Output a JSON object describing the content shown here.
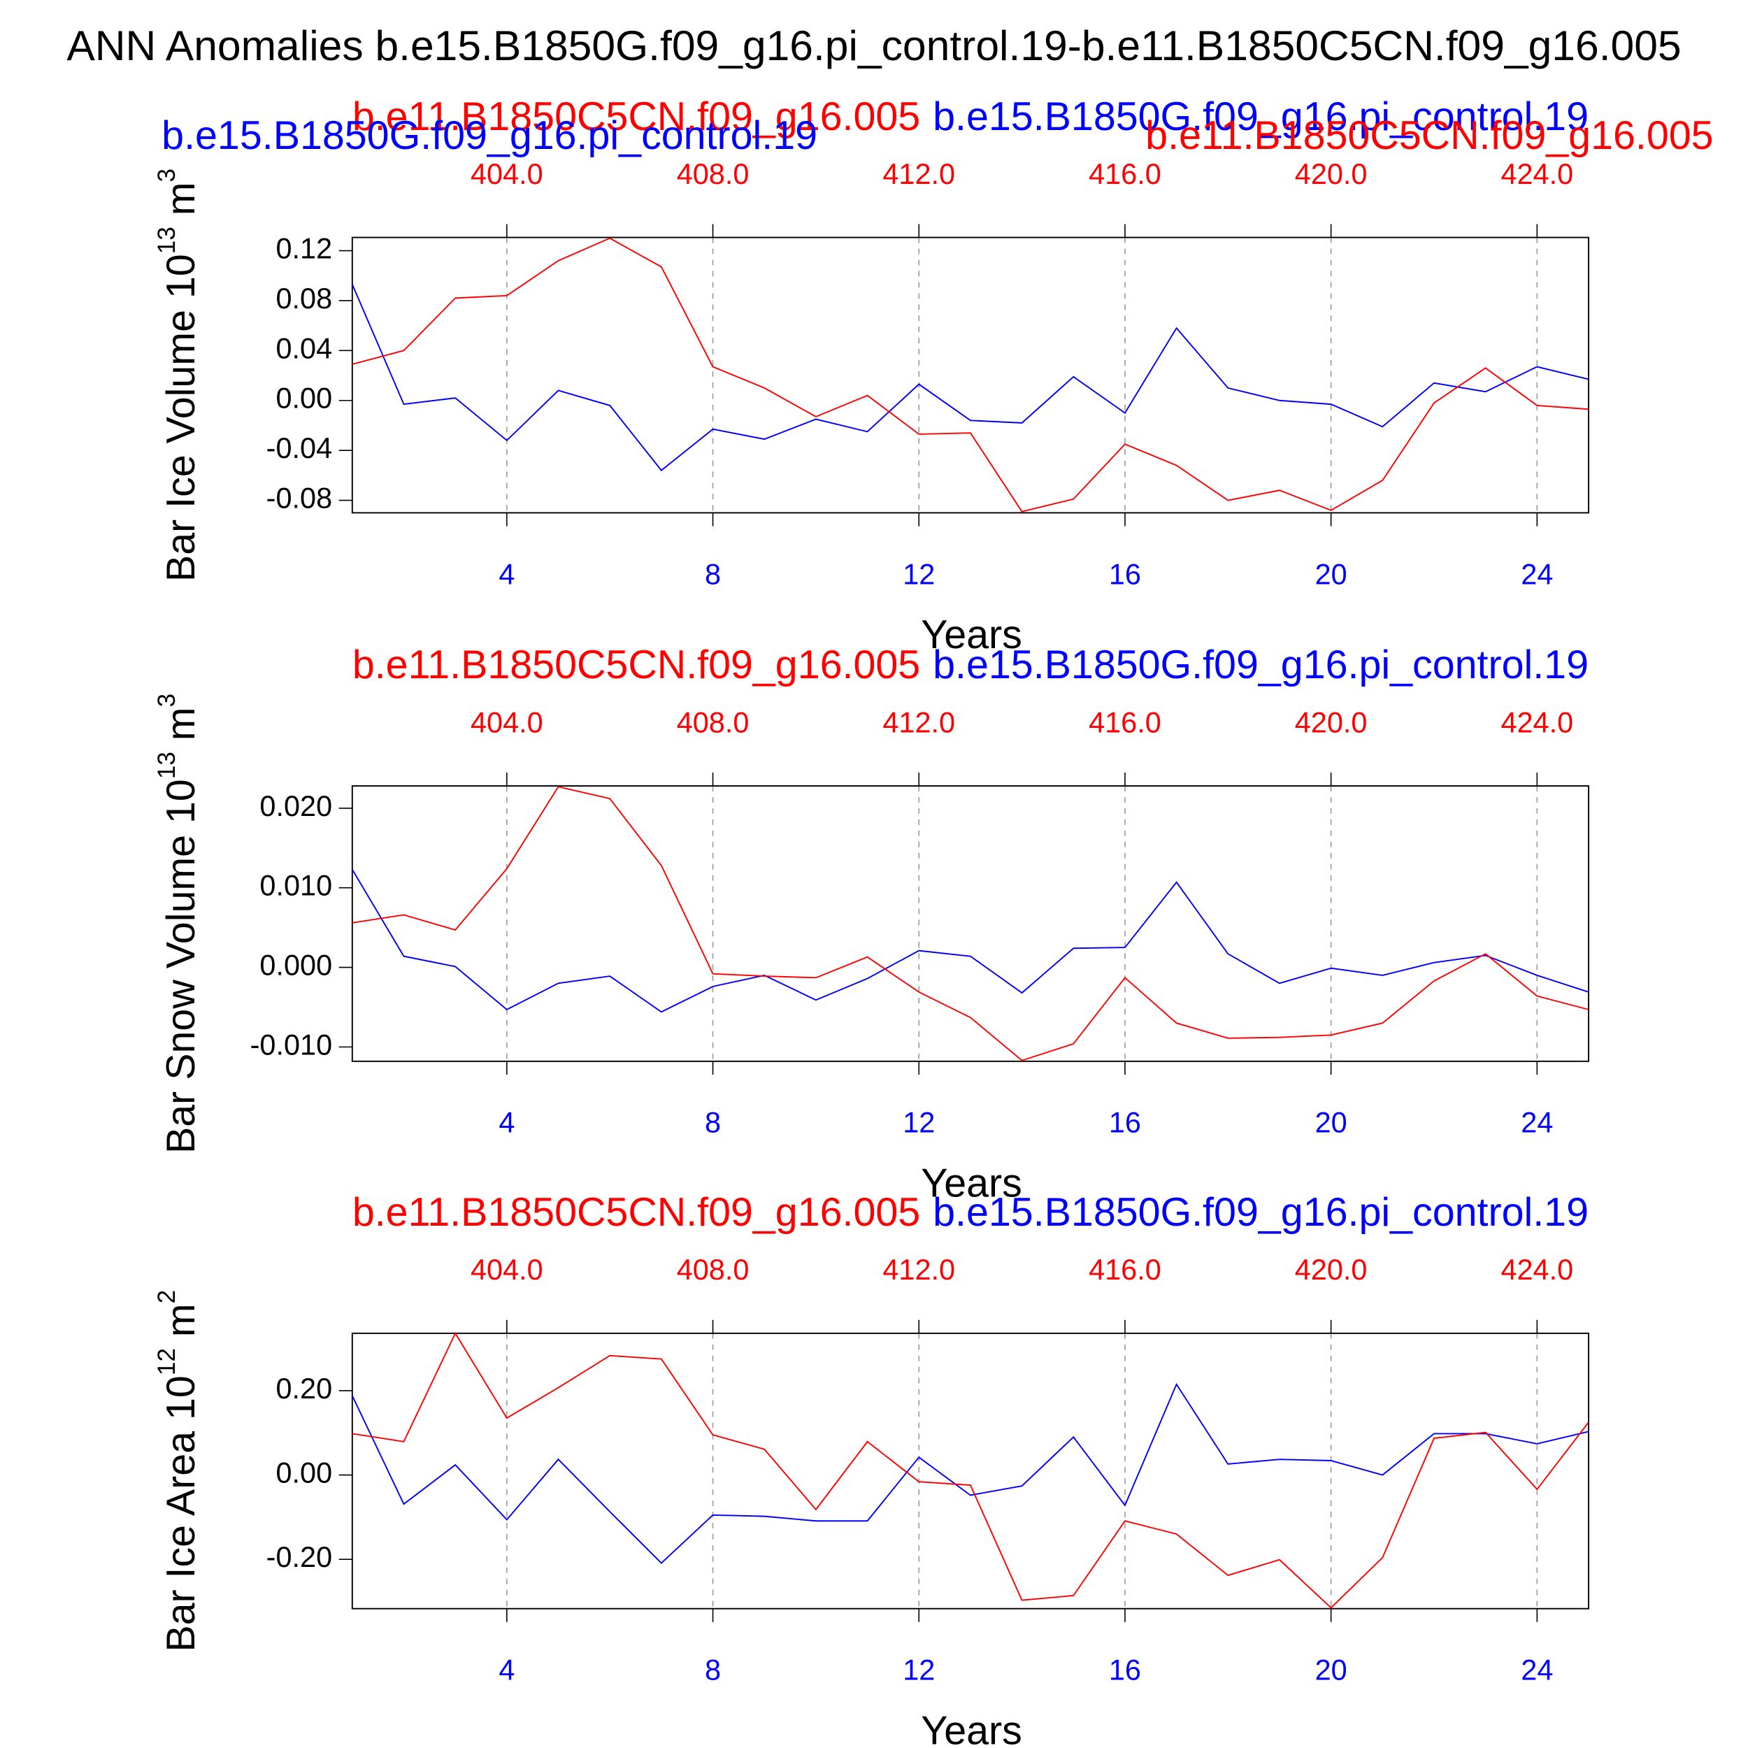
{
  "chart_data": [
    {
      "type": "line",
      "title": "ANN Anomalies b.e15.B1850G.f09_g16.pi_control.19-b.e11.B1850C5CN.f09_g16.005",
      "xlabel": "Years",
      "ylabel": {
        "text": "Bar Ice Volume 10",
        "sup": "13",
        "unit": " m",
        "unit_sup": "3"
      },
      "x": [
        1,
        2,
        3,
        4,
        5,
        6,
        7,
        8,
        9,
        10,
        11,
        12,
        13,
        14,
        15,
        16,
        17,
        18,
        19,
        20,
        21,
        22,
        23,
        24,
        25
      ],
      "x2": [
        401,
        402,
        403,
        404,
        405,
        406,
        407,
        408,
        409,
        410,
        411,
        412,
        413,
        414,
        415,
        416,
        417,
        418,
        419,
        420,
        421,
        422,
        423,
        424,
        425
      ],
      "xlim": [
        1,
        25
      ],
      "xticks": [
        4,
        8,
        12,
        16,
        20,
        24
      ],
      "x2lim": [
        401,
        425
      ],
      "x2ticks": [
        {
          "value": 404,
          "label": "404.0"
        },
        {
          "value": 408,
          "label": "408.0"
        },
        {
          "value": 412,
          "label": "412.0"
        },
        {
          "value": 416,
          "label": "416.0"
        },
        {
          "value": 420,
          "label": "420.0"
        },
        {
          "value": 424,
          "label": "424.0"
        }
      ],
      "ylim": [
        -0.09,
        0.1306
      ],
      "yticks": [
        0.12,
        0.08,
        0.04,
        {
          "value": 0,
          "label": "0.00"
        },
        -0.04,
        -0.08
      ],
      "grid": true,
      "series": [
        {
          "name": "b.e15.B1850G.f09_g16.pi_control.19",
          "color": "#0000ff",
          "axis": "x",
          "values": [
            0.093,
            -0.003,
            0.002,
            -0.032,
            0.008,
            -0.004,
            -0.056,
            -0.023,
            -0.031,
            -0.015,
            -0.025,
            0.013,
            -0.016,
            -0.018,
            0.019,
            -0.01,
            0.058,
            0.01,
            0.0,
            -0.003,
            -0.021,
            0.014,
            0.007,
            0.027,
            0.017
          ]
        },
        {
          "name": "b.e11.B1850C5CN.f09_g16.005",
          "color": "#ff0000",
          "axis": "x2",
          "values": [
            0.029,
            0.04,
            0.082,
            0.084,
            0.112,
            0.13,
            0.107,
            0.027,
            0.01,
            -0.013,
            0.004,
            -0.027,
            -0.026,
            -0.089,
            -0.079,
            -0.035,
            -0.052,
            -0.08,
            -0.072,
            -0.088,
            -0.064,
            -0.002,
            0.026,
            -0.004,
            -0.007
          ]
        }
      ]
    },
    {
      "type": "line",
      "xlabel": "Years",
      "ylabel": {
        "text": "Bar Snow Volume 10",
        "sup": "13",
        "unit": " m",
        "unit_sup": "3"
      },
      "x": [
        1,
        2,
        3,
        4,
        5,
        6,
        7,
        8,
        9,
        10,
        11,
        12,
        13,
        14,
        15,
        16,
        17,
        18,
        19,
        20,
        21,
        22,
        23,
        24,
        25
      ],
      "x2": [
        401,
        402,
        403,
        404,
        405,
        406,
        407,
        408,
        409,
        410,
        411,
        412,
        413,
        414,
        415,
        416,
        417,
        418,
        419,
        420,
        421,
        422,
        423,
        424,
        425
      ],
      "xlim": [
        1,
        25
      ],
      "xticks": [
        4,
        8,
        12,
        16,
        20,
        24
      ],
      "x2lim": [
        401,
        425
      ],
      "x2ticks": [
        {
          "value": 404,
          "label": "404.0"
        },
        {
          "value": 408,
          "label": "408.0"
        },
        {
          "value": 412,
          "label": "412.0"
        },
        {
          "value": 416,
          "label": "416.0"
        },
        {
          "value": 420,
          "label": "420.0"
        },
        {
          "value": 424,
          "label": "424.0"
        }
      ],
      "ylim": [
        -0.0118,
        0.0228
      ],
      "yticks": [
        {
          "value": 0.02,
          "label": "0.020"
        },
        {
          "value": 0.01,
          "label": "0.010"
        },
        {
          "value": 0,
          "label": "0.000"
        },
        {
          "value": -0.01,
          "label": "-0.010"
        }
      ],
      "grid": true,
      "series": [
        {
          "name": "b.e15.B1850G.f09_g16.pi_control.19",
          "color": "#0000ff",
          "axis": "x",
          "values": [
            0.0123,
            0.0014,
            0.0001,
            -0.0053,
            -0.002,
            -0.0011,
            -0.0056,
            -0.0024,
            -0.001,
            -0.0041,
            -0.0014,
            0.0021,
            0.0014,
            -0.0032,
            0.0024,
            0.0025,
            0.0107,
            0.0017,
            -0.002,
            -0.0001,
            -0.001,
            0.0006,
            0.0015,
            -0.001,
            -0.0031
          ]
        },
        {
          "name": "b.e11.B1850C5CN.f09_g16.005",
          "color": "#ff0000",
          "axis": "x2",
          "values": [
            0.0056,
            0.0066,
            0.0047,
            0.0124,
            0.0227,
            0.0212,
            0.0128,
            -0.0008,
            -0.0011,
            -0.0013,
            0.0013,
            -0.0031,
            -0.0063,
            -0.0117,
            -0.0096,
            -0.0013,
            -0.007,
            -0.0089,
            -0.0088,
            -0.0085,
            -0.007,
            -0.0017,
            0.0017,
            -0.0036,
            -0.0053
          ]
        }
      ]
    },
    {
      "type": "line",
      "xlabel": "Years",
      "ylabel": {
        "text": "Bar Ice Area 10",
        "sup": "12",
        "unit": " m",
        "unit_sup": "2"
      },
      "x": [
        1,
        2,
        3,
        4,
        5,
        6,
        7,
        8,
        9,
        10,
        11,
        12,
        13,
        14,
        15,
        16,
        17,
        18,
        19,
        20,
        21,
        22,
        23,
        24,
        25
      ],
      "x2": [
        401,
        402,
        403,
        404,
        405,
        406,
        407,
        408,
        409,
        410,
        411,
        412,
        413,
        414,
        415,
        416,
        417,
        418,
        419,
        420,
        421,
        422,
        423,
        424,
        425
      ],
      "xlim": [
        1,
        25
      ],
      "xticks": [
        4,
        8,
        12,
        16,
        20,
        24
      ],
      "x2lim": [
        401,
        425
      ],
      "x2ticks": [
        {
          "value": 404,
          "label": "404.0"
        },
        {
          "value": 408,
          "label": "408.0"
        },
        {
          "value": 412,
          "label": "412.0"
        },
        {
          "value": 416,
          "label": "416.0"
        },
        {
          "value": 420,
          "label": "420.0"
        },
        {
          "value": 424,
          "label": "424.0"
        }
      ],
      "ylim": [
        -0.317,
        0.336
      ],
      "yticks": [
        {
          "value": 0.2,
          "label": "0.20"
        },
        {
          "value": 0,
          "label": "0.00"
        },
        {
          "value": -0.2,
          "label": "-0.20"
        }
      ],
      "grid": true,
      "series": [
        {
          "name": "b.e15.B1850G.f09_g16.pi_control.19",
          "color": "#0000ff",
          "axis": "x",
          "values": [
            0.188,
            -0.069,
            0.024,
            -0.106,
            0.037,
            -0.087,
            -0.209,
            -0.095,
            -0.098,
            -0.109,
            -0.109,
            0.042,
            -0.048,
            -0.026,
            0.09,
            -0.072,
            0.215,
            0.026,
            0.037,
            0.034,
            0.0,
            0.098,
            0.098,
            0.074,
            0.103
          ]
        },
        {
          "name": "b.e11.B1850C5CN.f09_g16.005",
          "color": "#ff0000",
          "axis": "x2",
          "values": [
            0.098,
            0.079,
            0.336,
            0.135,
            0.207,
            0.283,
            0.275,
            0.095,
            0.061,
            -0.082,
            0.079,
            -0.016,
            -0.024,
            -0.297,
            -0.286,
            -0.109,
            -0.14,
            -0.238,
            -0.201,
            -0.315,
            -0.196,
            0.087,
            0.101,
            -0.034,
            0.125
          ]
        }
      ]
    }
  ]
}
